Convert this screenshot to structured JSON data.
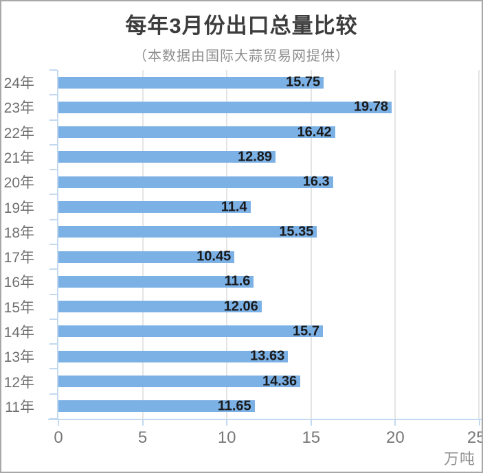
{
  "chart_data": {
    "type": "bar",
    "orientation": "horizontal",
    "title": "每年3月份出口总量比较",
    "subtitle": "（本数据由国际大蒜贸易网提供）",
    "categories": [
      "24年",
      "23年",
      "22年",
      "21年",
      "20年",
      "19年",
      "18年",
      "17年",
      "16年",
      "15年",
      "14年",
      "13年",
      "12年",
      "11年"
    ],
    "values": [
      15.75,
      19.78,
      16.42,
      12.89,
      16.3,
      11.4,
      15.35,
      10.45,
      11.6,
      12.06,
      15.7,
      13.63,
      14.36,
      11.65
    ],
    "x_ticks": [
      0,
      5,
      10,
      15,
      20,
      25
    ],
    "xlim": [
      0,
      25
    ],
    "x_unit_label": "万吨",
    "grid": true,
    "legend": "none",
    "colors": {
      "bar": "#7cb1e6",
      "axis": "#c3d9ef",
      "grid": "#e4e4e4",
      "category_label": "#6f6f6f",
      "value_label": "#1a1a1a",
      "title": "#3d3d3d",
      "subtitle": "#8e8e8e"
    }
  }
}
